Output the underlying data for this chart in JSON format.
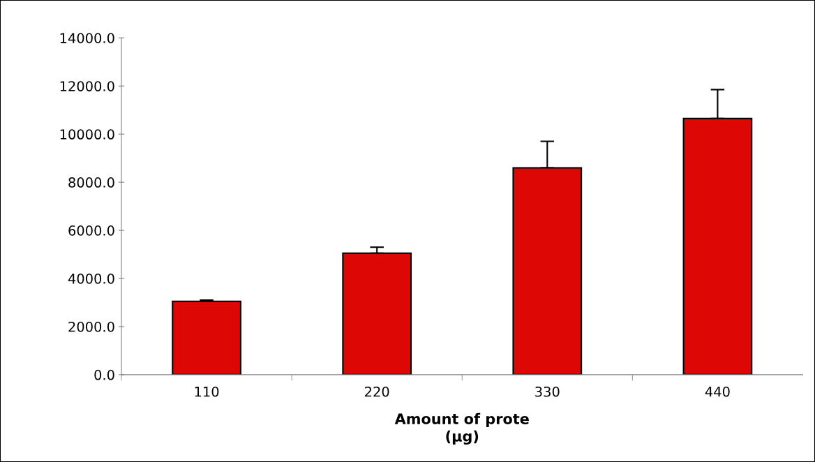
{
  "chart_data": {
    "type": "bar",
    "xlabel": "Amount of prote\n(µg)",
    "categories": [
      "110",
      "220",
      "330",
      "440"
    ],
    "values": [
      3050,
      5050,
      8600,
      10650
    ],
    "errors": [
      [
        3050,
        3100
      ],
      [
        5050,
        5300
      ],
      [
        8600,
        9700
      ],
      [
        10650,
        11850
      ]
    ],
    "color": "#dd0806",
    "ylim": [
      0,
      14000
    ],
    "yticks": [
      {
        "value": 0,
        "label": "0.0"
      },
      {
        "value": 2000,
        "label": "2000.0"
      },
      {
        "value": 4000,
        "label": "4000.0"
      },
      {
        "value": 6000,
        "label": "6000.0"
      },
      {
        "value": 8000,
        "label": "8000.0"
      },
      {
        "value": 10000,
        "label": "10000.0"
      },
      {
        "value": 12000,
        "label": "12000.0"
      },
      {
        "value": 14000,
        "label": "14000.0"
      }
    ],
    "grid": false
  }
}
